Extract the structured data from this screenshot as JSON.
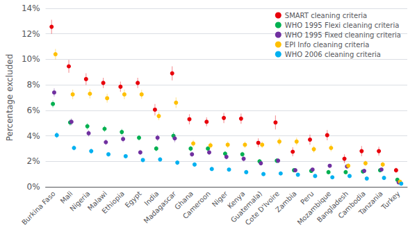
{
  "chart_data": {
    "type": "scatter",
    "ylabel": "Percentage excluded",
    "categories": [
      "Burkina Faso",
      "Mali",
      "Nigeria",
      "Malawi",
      "Ethiopia",
      "Egypt",
      "India",
      "Madagascar",
      "Ghana",
      "Cameroon",
      "Niger",
      "Kenya",
      "Guatemala)",
      "Cote D'Ivoire",
      "Zambia",
      "Peru",
      "Mozambique",
      "Bangladesh",
      "Cambodia",
      "Tanzania",
      "Turkey"
    ],
    "series": [
      {
        "name": "SMART cleaning criteria",
        "color": "#e8000b",
        "values": [
          12.55,
          9.45,
          8.45,
          8.15,
          7.85,
          8.15,
          6.05,
          8.9,
          5.3,
          5.1,
          5.4,
          5.35,
          3.45,
          5.05,
          2.75,
          3.7,
          4.05,
          2.2,
          2.8,
          2.8,
          1.3
        ],
        "err_lo": [
          0.55,
          0.5,
          0.45,
          0.4,
          0.4,
          0.4,
          0.45,
          0.55,
          0.4,
          0.35,
          0.4,
          0.4,
          0.35,
          0.55,
          0.35,
          0.4,
          0.4,
          0.35,
          0.4,
          0.35,
          0.2
        ],
        "err_hi": [
          0.55,
          0.5,
          0.45,
          0.4,
          0.4,
          0.4,
          0.45,
          0.55,
          0.4,
          0.35,
          0.4,
          0.4,
          0.35,
          0.55,
          0.35,
          0.4,
          0.4,
          0.35,
          0.4,
          0.35,
          0.2
        ]
      },
      {
        "name": "WHO 1995 Flexi cleaning criteria",
        "color": "#00b050",
        "values": [
          6.5,
          5.05,
          4.75,
          4.55,
          4.3,
          3.85,
          3.0,
          4.0,
          3.0,
          3.0,
          2.6,
          2.55,
          2.0,
          2.05,
          1.3,
          1.25,
          1.15,
          1.15,
          1.2,
          1.3,
          0.55
        ],
        "err_lo": [
          0.28,
          0.25,
          0.25,
          0.25,
          0.25,
          0.22,
          0.22,
          0.3,
          0.22,
          0.2,
          0.2,
          0.2,
          0.18,
          0.2,
          0.15,
          0.15,
          0.15,
          0.15,
          0.15,
          0.15,
          0.1
        ],
        "err_hi": [
          0.28,
          0.25,
          0.25,
          0.25,
          0.25,
          0.22,
          0.22,
          0.3,
          0.22,
          0.2,
          0.2,
          0.2,
          0.18,
          0.2,
          0.15,
          0.15,
          0.15,
          0.15,
          0.15,
          0.15,
          0.1
        ]
      },
      {
        "name": "WHO 1995 Fixed cleaning criteria",
        "color": "#7030a0",
        "values": [
          7.4,
          5.1,
          4.2,
          3.5,
          3.75,
          2.7,
          3.85,
          3.8,
          2.55,
          2.7,
          2.35,
          2.2,
          1.85,
          2.05,
          1.3,
          1.35,
          1.65,
          1.6,
          1.25,
          1.35,
          0.35
        ],
        "err_lo": [
          0.32,
          0.27,
          0.25,
          0.22,
          0.25,
          0.2,
          0.25,
          0.3,
          0.2,
          0.2,
          0.2,
          0.2,
          0.17,
          0.2,
          0.15,
          0.15,
          0.15,
          0.15,
          0.15,
          0.15,
          0.08
        ],
        "err_hi": [
          0.32,
          0.27,
          0.25,
          0.22,
          0.25,
          0.2,
          0.25,
          0.3,
          0.2,
          0.2,
          0.2,
          0.2,
          0.17,
          0.2,
          0.15,
          0.15,
          0.15,
          0.15,
          0.15,
          0.15,
          0.08
        ]
      },
      {
        "name": "EPI Info cleaning criteria",
        "color": "#ffc000",
        "values": [
          10.4,
          7.25,
          7.3,
          6.95,
          7.25,
          7.25,
          5.55,
          6.6,
          3.4,
          3.25,
          3.3,
          3.3,
          3.3,
          3.55,
          3.55,
          2.95,
          3.05,
          1.65,
          1.85,
          1.75,
          0.4
        ],
        "err_lo": [
          0.42,
          0.37,
          0.37,
          0.35,
          0.37,
          0.35,
          0.32,
          0.42,
          0.27,
          0.25,
          0.25,
          0.25,
          0.25,
          0.3,
          0.3,
          0.27,
          0.27,
          0.2,
          0.2,
          0.2,
          0.08
        ],
        "err_hi": [
          0.42,
          0.37,
          0.37,
          0.35,
          0.37,
          0.35,
          0.32,
          0.42,
          0.27,
          0.25,
          0.25,
          0.25,
          0.25,
          0.3,
          0.3,
          0.27,
          0.27,
          0.2,
          0.2,
          0.2,
          0.08
        ]
      },
      {
        "name": "WHO 2006 cleaning criteria",
        "color": "#00b0f0",
        "values": [
          4.05,
          3.05,
          2.8,
          2.55,
          2.4,
          2.1,
          2.15,
          1.9,
          1.75,
          1.4,
          1.35,
          1.15,
          1.0,
          1.05,
          0.95,
          0.85,
          0.75,
          0.85,
          0.65,
          0.7,
          0.25
        ],
        "err_lo": [
          0.22,
          0.2,
          0.2,
          0.18,
          0.18,
          0.17,
          0.17,
          0.17,
          0.16,
          0.15,
          0.15,
          0.14,
          0.13,
          0.13,
          0.13,
          0.12,
          0.12,
          0.12,
          0.11,
          0.11,
          0.08
        ],
        "err_hi": [
          0.22,
          0.2,
          0.2,
          0.18,
          0.18,
          0.17,
          0.17,
          0.17,
          0.16,
          0.15,
          0.15,
          0.14,
          0.13,
          0.13,
          0.13,
          0.12,
          0.12,
          0.12,
          0.11,
          0.11,
          0.08
        ]
      }
    ],
    "ylim": [
      0,
      14
    ],
    "yticks": [
      {
        "value": 0,
        "label": "0%"
      },
      {
        "value": 2,
        "label": "2%"
      },
      {
        "value": 4,
        "label": "4%"
      },
      {
        "value": 6,
        "label": "6%"
      },
      {
        "value": 8,
        "label": "8%"
      },
      {
        "value": 10,
        "label": "10%"
      },
      {
        "value": 12,
        "label": "12%"
      },
      {
        "value": 14,
        "label": "14%"
      }
    ],
    "grid": true,
    "legend": "upper right"
  }
}
